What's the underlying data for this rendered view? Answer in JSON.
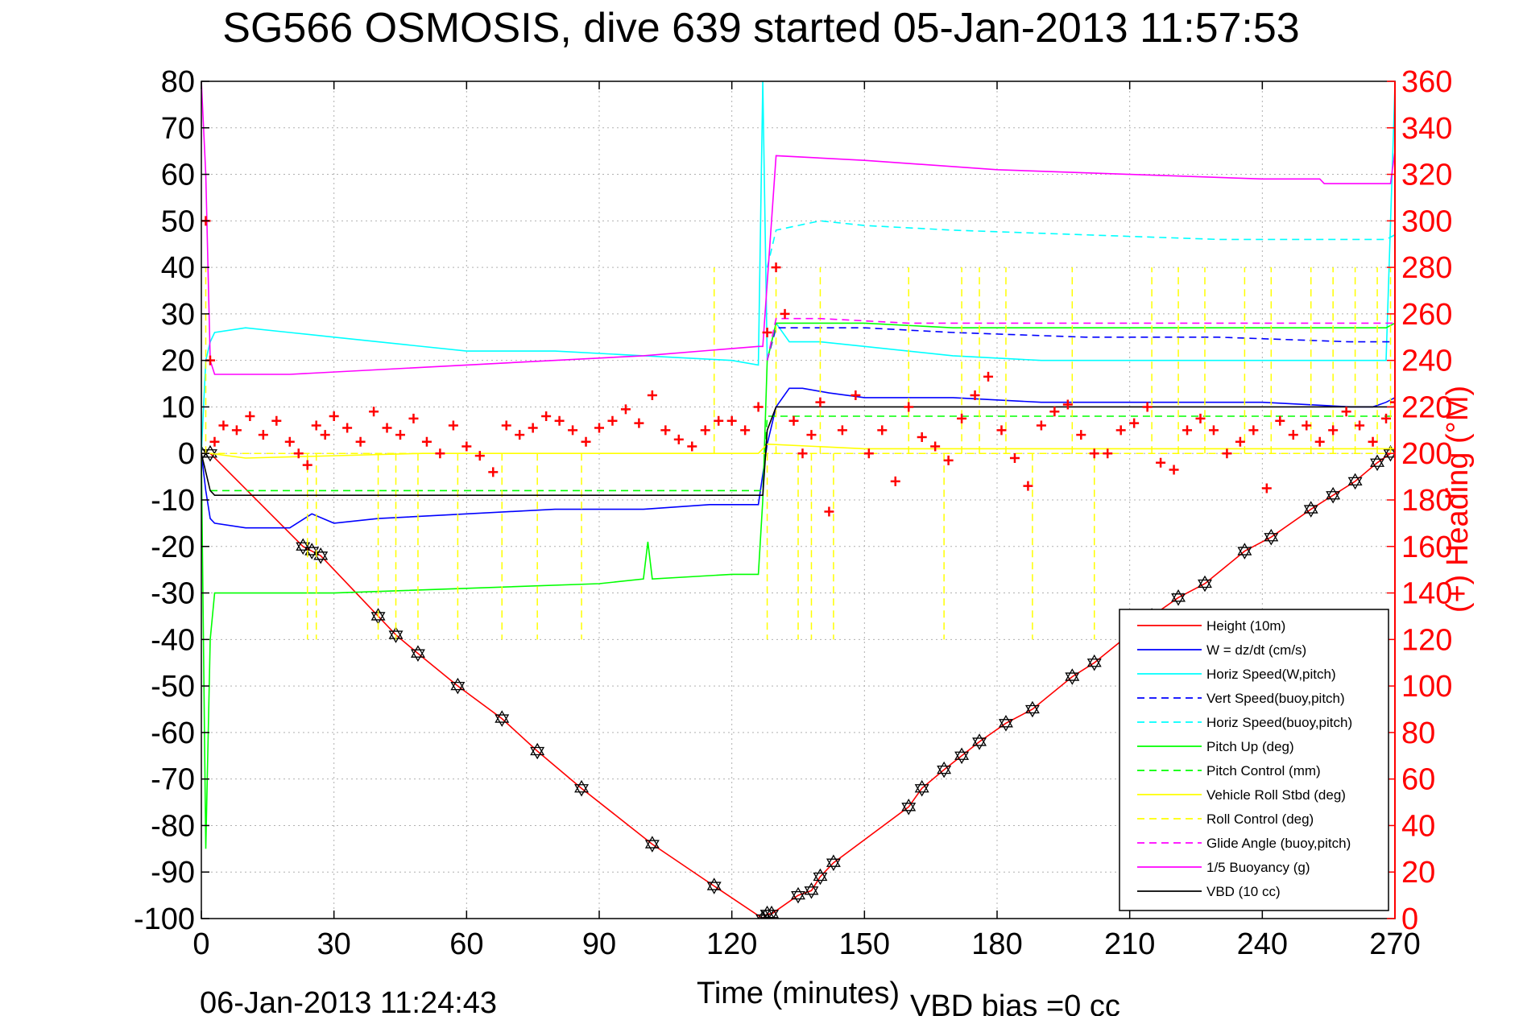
{
  "chart_data": {
    "type": "line",
    "title": "SG566 OSMOSIS, dive 639 started 05-Jan-2013 11:57:53",
    "xlabel": "Time (minutes)",
    "ylabel_right": "(+) Heading (°M)",
    "footer_left": "06-Jan-2013 11:24:43",
    "footer_right": "VBD bias =0 cc",
    "xlim": [
      0,
      270
    ],
    "ylim": [
      -100,
      80
    ],
    "y2lim": [
      0,
      360
    ],
    "x_ticks": [
      0,
      30,
      60,
      90,
      120,
      150,
      180,
      210,
      240,
      270
    ],
    "y_ticks": [
      -100,
      -90,
      -80,
      -70,
      -60,
      -50,
      -40,
      -30,
      -20,
      -10,
      0,
      10,
      20,
      30,
      40,
      50,
      60,
      70,
      80
    ],
    "y2_ticks": [
      0,
      20,
      40,
      60,
      80,
      100,
      120,
      140,
      160,
      180,
      200,
      220,
      240,
      260,
      280,
      300,
      320,
      340,
      360
    ],
    "grid": true,
    "legend_position": "bottom-right",
    "right_axis_color": "#ff0000",
    "series": [
      {
        "name": "Height (10m)",
        "color": "#ff0000",
        "dash": "solid",
        "markers": "hexagram-black",
        "x": [
          0,
          2,
          23,
          25,
          27,
          40,
          44,
          49,
          58,
          68,
          76,
          86,
          102,
          116,
          127,
          128,
          129,
          135,
          138,
          140,
          143,
          160,
          163,
          168,
          172,
          176,
          182,
          188,
          197,
          202,
          215,
          221,
          227,
          236,
          242,
          251,
          256,
          261,
          266,
          269
        ],
        "y": [
          0,
          0,
          -20,
          -21,
          -22,
          -35,
          -39,
          -43,
          -50,
          -57,
          -64,
          -72,
          -84,
          -93,
          -100,
          -99,
          -99,
          -95,
          -94,
          -91,
          -88,
          -76,
          -72,
          -68,
          -65,
          -62,
          -58,
          -55,
          -48,
          -45,
          -35,
          -31,
          -28,
          -21,
          -18,
          -12,
          -9,
          -6,
          -2,
          0
        ]
      },
      {
        "name": "W = dz/dt (cm/s)",
        "color": "#0000ff",
        "dash": "solid",
        "x": [
          0,
          1,
          2,
          3,
          10,
          20,
          25,
          30,
          40,
          60,
          80,
          100,
          115,
          126,
          128,
          130,
          133,
          136,
          142,
          150,
          170,
          190,
          210,
          240,
          260,
          265,
          268,
          270
        ],
        "y": [
          0,
          -8,
          -14,
          -15,
          -16,
          -16,
          -13,
          -15,
          -14,
          -13,
          -12,
          -12,
          -11,
          -11,
          2,
          10,
          14,
          14,
          13,
          12,
          12,
          11,
          11,
          11,
          10,
          10,
          11,
          12
        ]
      },
      {
        "name": "Horiz Speed(W,pitch)",
        "color": "#00ffff",
        "dash": "solid",
        "x": [
          0,
          1,
          2,
          3,
          10,
          20,
          30,
          40,
          60,
          80,
          100,
          120,
          126,
          127,
          128,
          130,
          133,
          140,
          150,
          170,
          190,
          210,
          240,
          260,
          268,
          270
        ],
        "y": [
          0,
          20,
          24,
          26,
          27,
          26,
          25,
          24,
          22,
          22,
          21,
          20,
          19,
          80,
          20,
          28,
          24,
          24,
          23,
          21,
          20,
          20,
          20,
          20,
          20,
          79
        ]
      },
      {
        "name": "Vert Speed(buoy,pitch)",
        "color": "#0000ff",
        "dash": "dashed",
        "x": [
          128,
          130,
          135,
          150,
          170,
          200,
          230,
          260,
          270
        ],
        "y": [
          20,
          27,
          27,
          27,
          26,
          25,
          25,
          24,
          24
        ]
      },
      {
        "name": "Horiz Speed(buoy,pitch)",
        "color": "#00ffff",
        "dash": "dashed",
        "x": [
          128,
          130,
          135,
          140,
          150,
          170,
          200,
          230,
          260,
          268,
          270
        ],
        "y": [
          40,
          48,
          49,
          50,
          49,
          48,
          47,
          46,
          46,
          46,
          47
        ]
      },
      {
        "name": "Pitch Up (deg)",
        "color": "#00ff00",
        "dash": "solid",
        "x": [
          0,
          1,
          2,
          3,
          10,
          30,
          60,
          90,
          100,
          101,
          102,
          120,
          126,
          127,
          128,
          130,
          135,
          150,
          170,
          200,
          230,
          260,
          268,
          270
        ],
        "y": [
          0,
          -85,
          -40,
          -30,
          -30,
          -30,
          -29,
          -28,
          -27,
          -19,
          -27,
          -26,
          -26,
          -10,
          20,
          28,
          28,
          28,
          27,
          27,
          27,
          27,
          27,
          28
        ]
      },
      {
        "name": "Pitch Control (mm)",
        "color": "#00ff00",
        "dash": "dashed",
        "x": [
          2,
          127,
          128,
          270
        ],
        "y": [
          -8,
          -8,
          8,
          8
        ]
      },
      {
        "name": "Vehicle Roll Stbd (deg)",
        "color": "#ffff00",
        "dash": "solid",
        "x": [
          0,
          2,
          10,
          50,
          100,
          126,
          128,
          150,
          200,
          250,
          270
        ],
        "y": [
          0,
          0,
          -1,
          0,
          0,
          0,
          2,
          1,
          1,
          1,
          1
        ]
      },
      {
        "name": "Roll Control (deg)",
        "color": "#ffff00",
        "dash": "dashed",
        "spikes_x": [
          1,
          24,
          26,
          40,
          44,
          49,
          58,
          68,
          76,
          86,
          116,
          128,
          130,
          135,
          138,
          140,
          143,
          160,
          168,
          172,
          176,
          182,
          188,
          197,
          202,
          215,
          221,
          227,
          236,
          242,
          251,
          256,
          261,
          266,
          269
        ],
        "spikes_y": [
          40,
          -40,
          -40,
          -40,
          -40,
          -40,
          -40,
          -40,
          -40,
          -40,
          40,
          -40,
          40,
          -40,
          -40,
          40,
          -40,
          40,
          -40,
          40,
          40,
          40,
          -40,
          40,
          -40,
          40,
          40,
          40,
          40,
          40,
          40,
          40,
          40,
          40,
          40
        ]
      },
      {
        "name": "Glide Angle (buoy,pitch)",
        "color": "#ff00ff",
        "dash": "dashed",
        "x": [
          128,
          130,
          140,
          160,
          200,
          240,
          270
        ],
        "y": [
          20,
          29,
          29,
          28,
          28,
          28,
          28
        ]
      },
      {
        "name": "1/5 Buoyancy (g)",
        "color": "#ff00ff",
        "dash": "solid",
        "x": [
          0,
          1,
          2,
          3,
          20,
          60,
          100,
          126,
          127,
          130,
          150,
          180,
          210,
          240,
          253,
          254,
          269,
          270
        ],
        "y": [
          80,
          60,
          20,
          17,
          17,
          19,
          21,
          23,
          23,
          64,
          63,
          61,
          60,
          59,
          59,
          58,
          58,
          65
        ]
      },
      {
        "name": "VBD (10 cc)",
        "color": "#000000",
        "dash": "solid",
        "x": [
          0,
          2,
          3,
          126,
          127,
          128,
          130,
          270
        ],
        "y": [
          0,
          -8,
          -9,
          -9,
          -9,
          5,
          10,
          10
        ]
      },
      {
        "name": "Heading",
        "color": "#ff0000",
        "axis": "right",
        "marker": "+",
        "x": [
          1,
          2,
          3,
          5,
          8,
          11,
          14,
          17,
          20,
          22,
          24,
          26,
          28,
          30,
          33,
          36,
          39,
          42,
          45,
          48,
          51,
          54,
          57,
          60,
          63,
          66,
          69,
          72,
          75,
          78,
          81,
          84,
          87,
          90,
          93,
          96,
          99,
          102,
          105,
          108,
          111,
          114,
          117,
          120,
          123,
          126,
          128,
          130,
          132,
          134,
          136,
          138,
          140,
          142,
          145,
          148,
          151,
          154,
          157,
          160,
          163,
          166,
          169,
          172,
          175,
          178,
          181,
          184,
          187,
          190,
          193,
          196,
          199,
          202,
          205,
          208,
          211,
          214,
          217,
          220,
          223,
          226,
          229,
          232,
          235,
          238,
          241,
          244,
          247,
          250,
          253,
          256,
          259,
          262,
          265,
          268,
          270
        ],
        "y": [
          300,
          240,
          205,
          212,
          210,
          216,
          208,
          214,
          205,
          200,
          195,
          212,
          208,
          216,
          211,
          205,
          218,
          211,
          208,
          215,
          205,
          200,
          212,
          203,
          199,
          192,
          212,
          208,
          211,
          216,
          214,
          210,
          205,
          211,
          214,
          219,
          213,
          225,
          210,
          206,
          203,
          210,
          214,
          214,
          210,
          220,
          252,
          280,
          260,
          214,
          200,
          208,
          222,
          175,
          210,
          225,
          200,
          210,
          188,
          220,
          207,
          203,
          197,
          215,
          225,
          233,
          210,
          198,
          186,
          212,
          218,
          221,
          208,
          200,
          200,
          210,
          213,
          220,
          196,
          193,
          210,
          215,
          210,
          200,
          205,
          210,
          185,
          214,
          208,
          212,
          205,
          210,
          218,
          212,
          205,
          215,
          222
        ]
      }
    ]
  }
}
